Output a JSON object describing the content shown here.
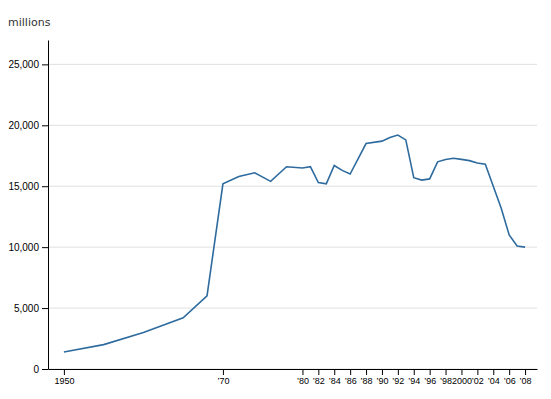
{
  "chart_data": {
    "type": "line",
    "ylabel": "millions",
    "x": [
      1950,
      1955,
      1960,
      1965,
      1968,
      1970,
      1972,
      1974,
      1976,
      1978,
      1980,
      1981,
      1982,
      1983,
      1984,
      1985,
      1986,
      1988,
      1990,
      1991,
      1992,
      1993,
      1994,
      1995,
      1996,
      1997,
      1998,
      1999,
      2000,
      2001,
      2002,
      2003,
      2004,
      2005,
      2006,
      2007,
      2008
    ],
    "values": [
      1400,
      2000,
      3000,
      4200,
      6000,
      15200,
      15800,
      16100,
      15400,
      16600,
      16500,
      16600,
      15300,
      15200,
      16700,
      16300,
      16000,
      18500,
      18700,
      19000,
      19200,
      18800,
      15700,
      15500,
      15600,
      17000,
      17200,
      17300,
      17200,
      17100,
      16900,
      16800,
      15000,
      13200,
      11000,
      10100,
      10000
    ],
    "color": "#2e6b9e",
    "xlim": [
      1948,
      2009.5
    ],
    "ylim": [
      0,
      27000
    ],
    "xticks": [
      1950,
      {
        "value": 1970,
        "label": "’70"
      },
      {
        "value": 1980,
        "label": "’80"
      },
      {
        "value": 1982,
        "label": "’82"
      },
      {
        "value": 1984,
        "label": "’84"
      },
      {
        "value": 1986,
        "label": "’86"
      },
      {
        "value": 1988,
        "label": "’88"
      },
      {
        "value": 1990,
        "label": "’90"
      },
      {
        "value": 1992,
        "label": "’92"
      },
      {
        "value": 1994,
        "label": "’94"
      },
      {
        "value": 1996,
        "label": "’96"
      },
      {
        "value": 1998,
        "label": "’98"
      },
      2000,
      {
        "value": 2002,
        "label": "’02"
      },
      {
        "value": 2004,
        "label": "’04"
      },
      {
        "value": 2006,
        "label": "’06"
      },
      {
        "value": 2008,
        "label": "’08"
      }
    ],
    "yticks": [
      0,
      {
        "value": 5000,
        "label": "5,000"
      },
      {
        "value": 10000,
        "label": "10,000"
      },
      {
        "value": 15000,
        "label": "15,000"
      },
      {
        "value": 20000,
        "label": "20,000"
      },
      {
        "value": 25000,
        "label": "25,000"
      }
    ],
    "grid": true
  }
}
